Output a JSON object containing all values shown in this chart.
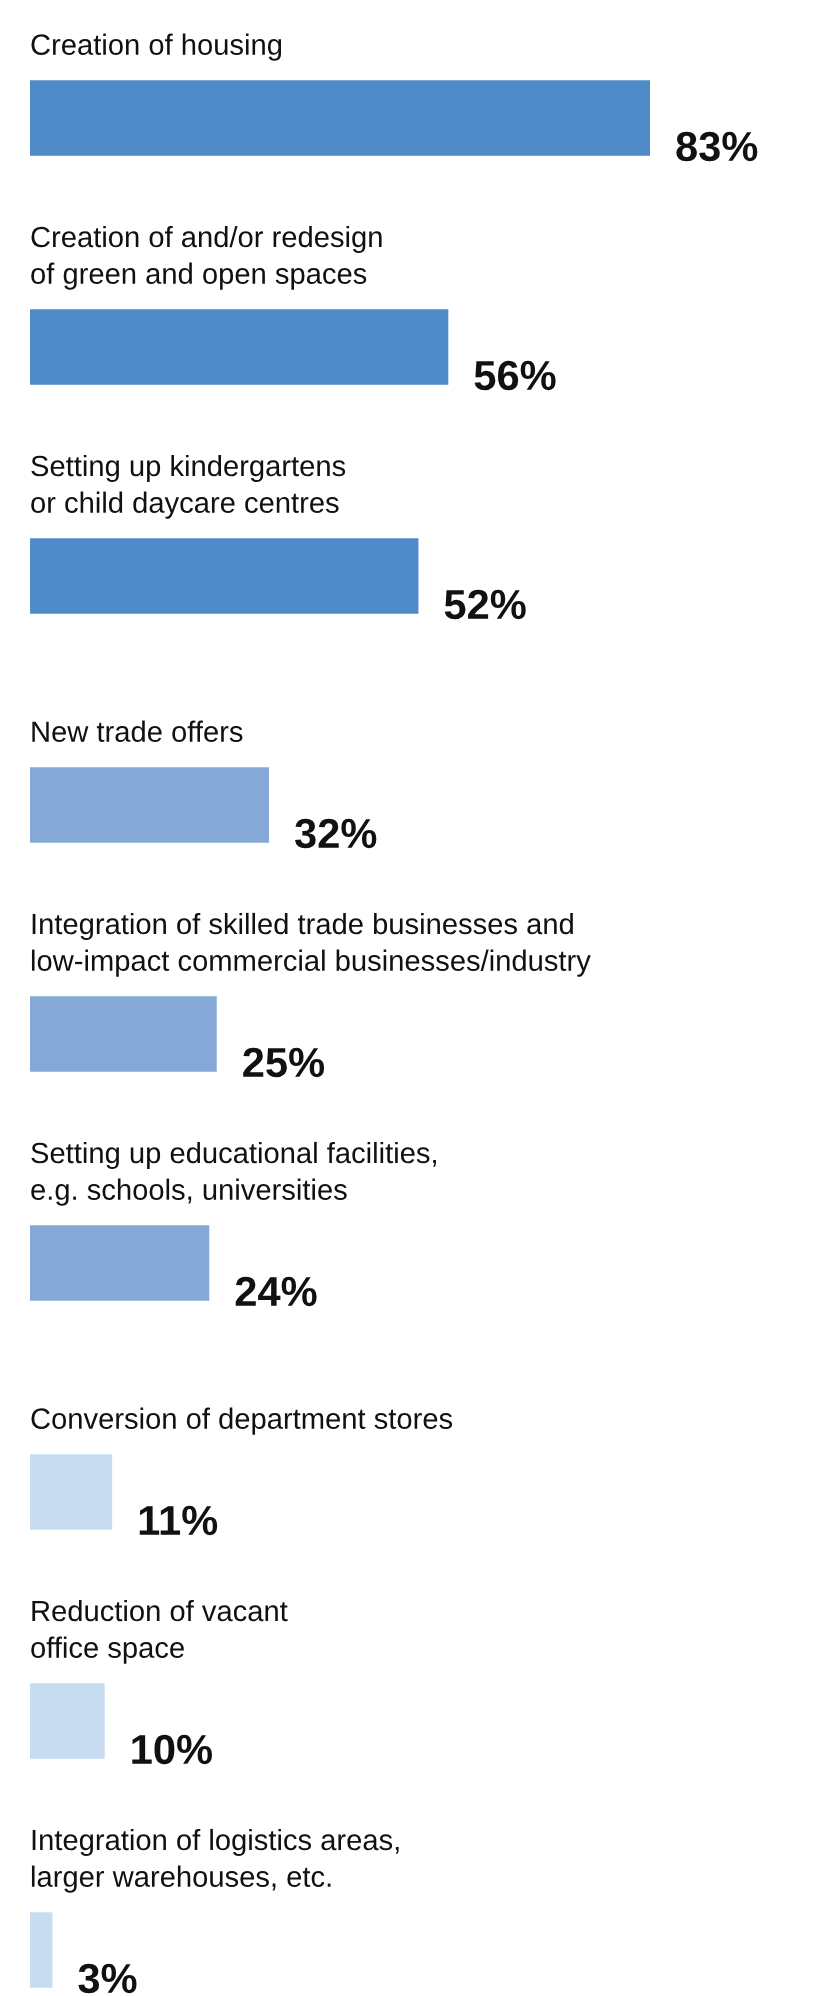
{
  "chart_data": {
    "type": "bar",
    "orientation": "horizontal",
    "categories": [
      "Creation of housing",
      "Creation of and/or redesign\nof green and open spaces",
      "Setting up kindergartens\nor child daycare centres",
      "New trade offers",
      "Integration of skilled trade businesses and\nlow-impact commercial businesses/industry",
      "Setting up educational facilities,\ne.g. schools, universities",
      "Conversion of department stores",
      "Reduction of vacant\noffice space",
      "Integration of logistics areas,\nlarger warehouses, etc."
    ],
    "values": [
      83,
      56,
      52,
      32,
      25,
      24,
      11,
      10,
      3
    ],
    "colors": [
      "#4f8bc9",
      "#4f8bc9",
      "#4f8bc9",
      "#85a8d6",
      "#85a8d6",
      "#85a8d6",
      "#c7dcf0",
      "#c7dcf0",
      "#c7dcf0"
    ],
    "value_labels": [
      "83%",
      "56%",
      "52%",
      "32%",
      "25%",
      "24%",
      "11%",
      "10%",
      "3%"
    ],
    "legend": false
  }
}
